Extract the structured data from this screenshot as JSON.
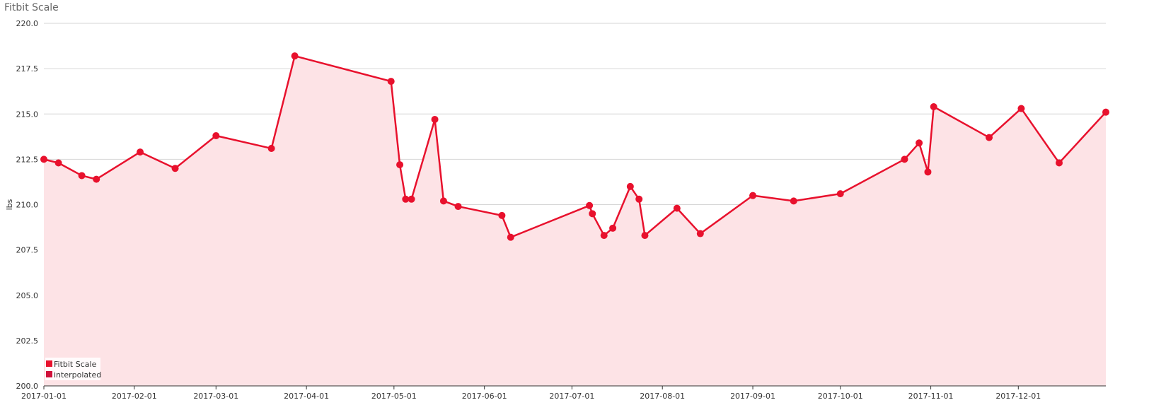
{
  "chart_data": {
    "type": "line",
    "title": "Fitbit Scale",
    "ylabel": "lbs",
    "xlabel": "",
    "ylim": [
      200.0,
      220.0
    ],
    "y_ticks": [
      "200.0",
      "202.5",
      "205.0",
      "207.5",
      "210.0",
      "212.5",
      "215.0",
      "217.5",
      "220.0"
    ],
    "x_range": [
      "2017-01-01",
      "2017-12-31"
    ],
    "x_ticks": [
      "2017-01-01",
      "2017-02-01",
      "2017-03-01",
      "2017-04-01",
      "2017-05-01",
      "2017-06-01",
      "2017-07-01",
      "2017-08-01",
      "2017-09-01",
      "2017-10-01",
      "2017-11-01",
      "2017-12-01"
    ],
    "grid": true,
    "legend_position": "bottom-left",
    "legend": [
      "Fitbit Scale",
      "interpolated"
    ],
    "colors": {
      "line": "#e8112d",
      "fill": "#fde3e6",
      "grid": "#d6d6d6",
      "legend_interpolated": "#d0103a"
    },
    "series": [
      {
        "name": "Fitbit Scale",
        "x": [
          "2017-01-01",
          "2017-01-06",
          "2017-01-14",
          "2017-01-19",
          "2017-02-03",
          "2017-02-15",
          "2017-03-01",
          "2017-03-20",
          "2017-03-28",
          "2017-04-30",
          "2017-05-03",
          "2017-05-05",
          "2017-05-07",
          "2017-05-15",
          "2017-05-18",
          "2017-05-23",
          "2017-06-07",
          "2017-06-10",
          "2017-07-07",
          "2017-07-08",
          "2017-07-12",
          "2017-07-15",
          "2017-07-21",
          "2017-07-24",
          "2017-07-26",
          "2017-08-06",
          "2017-08-14",
          "2017-09-01",
          "2017-09-15",
          "2017-10-01",
          "2017-10-23",
          "2017-10-28",
          "2017-10-31",
          "2017-11-02",
          "2017-11-21",
          "2017-12-02",
          "2017-12-15",
          "2017-12-31"
        ],
        "values": [
          212.5,
          212.3,
          211.6,
          211.4,
          212.9,
          212.0,
          213.8,
          213.1,
          218.2,
          216.8,
          212.2,
          210.3,
          210.3,
          214.7,
          210.2,
          209.9,
          209.4,
          208.2,
          209.95,
          209.5,
          208.3,
          208.7,
          211.0,
          210.3,
          208.3,
          209.8,
          208.4,
          210.5,
          210.2,
          210.6,
          212.5,
          213.4,
          211.8,
          215.4,
          213.7,
          215.3,
          212.3,
          215.1
        ]
      }
    ]
  }
}
